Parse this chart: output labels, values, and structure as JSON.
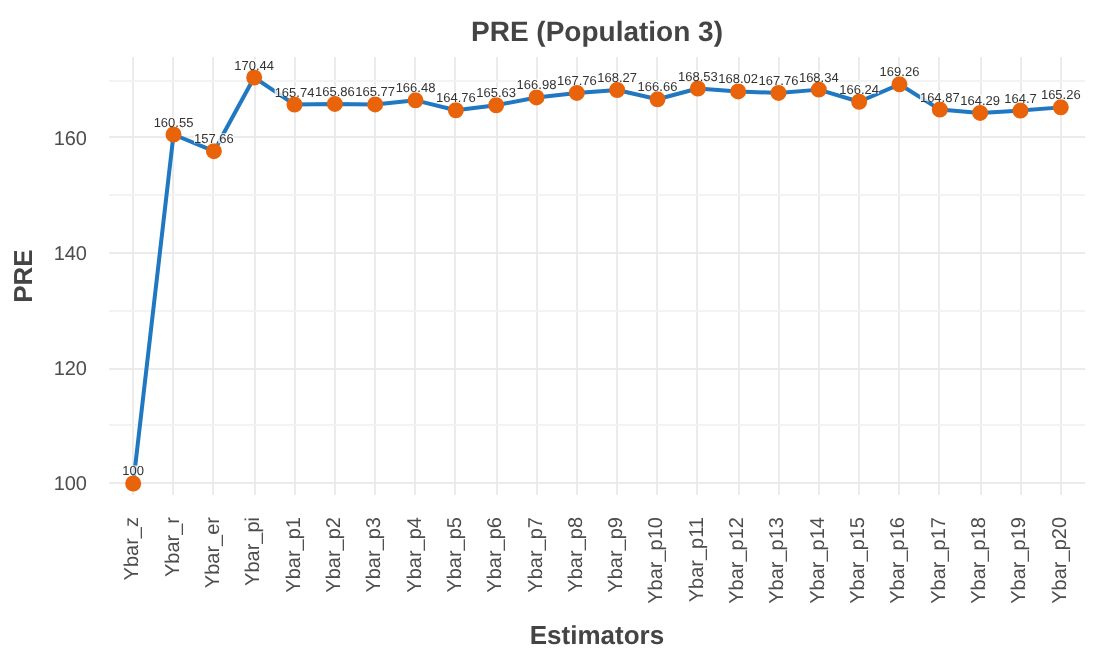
{
  "chart_data": {
    "type": "line",
    "title": "PRE (Population 3)",
    "xlabel": "Estimators",
    "ylabel": "PRE",
    "categories": [
      "Ybar_z",
      "Ybar_r",
      "Ybar_er",
      "Ybar_pi",
      "Ybar_p1",
      "Ybar_p2",
      "Ybar_p3",
      "Ybar_p4",
      "Ybar_p5",
      "Ybar_p6",
      "Ybar_p7",
      "Ybar_p8",
      "Ybar_p9",
      "Ybar_p10",
      "Ybar_p11",
      "Ybar_p12",
      "Ybar_p13",
      "Ybar_p14",
      "Ybar_p15",
      "Ybar_p16",
      "Ybar_p17",
      "Ybar_p18",
      "Ybar_p19",
      "Ybar_p20"
    ],
    "series": [
      {
        "color": "#1f78c1",
        "colors": [
          "#e8630a",
          "#e8630a",
          "#e8630a",
          "#e8630a",
          "#e8630a",
          "#e8630a",
          "#e8630a",
          "#e8630a",
          "#e8630a",
          "#e8630a",
          "#e8630a",
          "#e8630a",
          "#e8630a",
          "#e8630a",
          "#e8630a",
          "#e8630a",
          "#e8630a",
          "#e8630a",
          "#e8630a",
          "#e8630a",
          "#e8630a",
          "#e8630a",
          "#e8630a",
          "#e8630a"
        ],
        "values": [
          100,
          160.55,
          157.66,
          170.44,
          165.74,
          165.86,
          165.77,
          166.48,
          164.76,
          165.63,
          166.98,
          167.76,
          168.27,
          166.66,
          168.53,
          168.02,
          167.76,
          168.34,
          166.24,
          169.26,
          164.87,
          164.29,
          164.7,
          165.26
        ]
      }
    ],
    "ylim": [
      98,
      174
    ],
    "yticks": [
      100,
      120,
      140,
      160
    ],
    "grid": true,
    "marker": "circle",
    "line_style": "solid",
    "data_labels": true
  }
}
